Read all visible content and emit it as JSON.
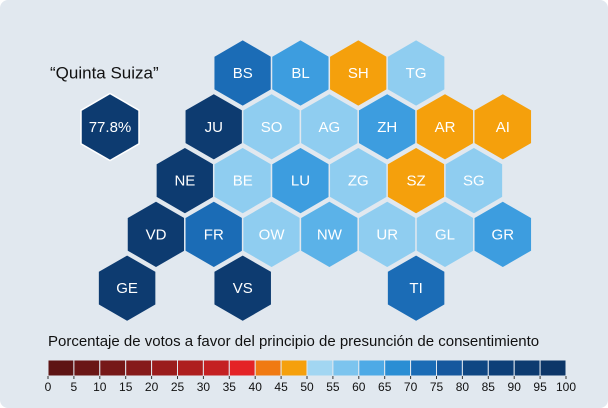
{
  "title": "“Quinta Suiza”",
  "highlight": {
    "label": "77.8%",
    "color": "#0d3b70"
  },
  "cantons": [
    {
      "label": "BS",
      "row": 0,
      "col": 1.5,
      "color": "#1b6cb6"
    },
    {
      "label": "BL",
      "row": 0,
      "col": 2.5,
      "color": "#3d9ddf"
    },
    {
      "label": "SH",
      "row": 0,
      "col": 3.5,
      "color": "#f5a00c"
    },
    {
      "label": "TG",
      "row": 0,
      "col": 4.5,
      "color": "#8fcdf0"
    },
    {
      "label": "JU",
      "row": 1,
      "col": 1,
      "color": "#0d3b70"
    },
    {
      "label": "SO",
      "row": 1,
      "col": 2,
      "color": "#8fcdf0"
    },
    {
      "label": "AG",
      "row": 1,
      "col": 3,
      "color": "#8fcdf0"
    },
    {
      "label": "ZH",
      "row": 1,
      "col": 4,
      "color": "#3d9ddf"
    },
    {
      "label": "AR",
      "row": 1,
      "col": 5,
      "color": "#f5a00c"
    },
    {
      "label": "AI",
      "row": 1,
      "col": 6,
      "color": "#f5a00c"
    },
    {
      "label": "NE",
      "row": 2,
      "col": 0.5,
      "color": "#0d3b70"
    },
    {
      "label": "BE",
      "row": 2,
      "col": 1.5,
      "color": "#8fcdf0"
    },
    {
      "label": "LU",
      "row": 2,
      "col": 2.5,
      "color": "#3d9ddf"
    },
    {
      "label": "ZG",
      "row": 2,
      "col": 3.5,
      "color": "#8fcdf0"
    },
    {
      "label": "SZ",
      "row": 2,
      "col": 4.5,
      "color": "#f5a00c"
    },
    {
      "label": "SG",
      "row": 2,
      "col": 5.5,
      "color": "#8fcdf0"
    },
    {
      "label": "VD",
      "row": 3,
      "col": 0,
      "color": "#0d3b70"
    },
    {
      "label": "FR",
      "row": 3,
      "col": 1,
      "color": "#1b6cb6"
    },
    {
      "label": "OW",
      "row": 3,
      "col": 2,
      "color": "#8fcdf0"
    },
    {
      "label": "NW",
      "row": 3,
      "col": 3,
      "color": "#5bb2e8"
    },
    {
      "label": "UR",
      "row": 3,
      "col": 4,
      "color": "#8fcdf0"
    },
    {
      "label": "GL",
      "row": 3,
      "col": 5,
      "color": "#8fcdf0"
    },
    {
      "label": "GR",
      "row": 3,
      "col": 6,
      "color": "#3d9ddf"
    },
    {
      "label": "GE",
      "row": 4,
      "col": -0.5,
      "color": "#0d3b70"
    },
    {
      "label": "VS",
      "row": 4,
      "col": 1.5,
      "color": "#0d3b70"
    },
    {
      "label": "TI",
      "row": 4,
      "col": 4.5,
      "color": "#1b6cb6"
    }
  ],
  "legend": {
    "title": "Porcentaje de votos a favor del principio de presunción de consentimiento",
    "range": [
      0,
      100
    ],
    "ticks": [
      0,
      5,
      10,
      15,
      20,
      25,
      30,
      35,
      40,
      45,
      50,
      55,
      60,
      65,
      70,
      75,
      80,
      85,
      90,
      95,
      100
    ],
    "colors": [
      "#5e1414",
      "#6a1616",
      "#761818",
      "#861a1a",
      "#9a1c1c",
      "#ae1e1e",
      "#c42022",
      "#e42326",
      "#f07a12",
      "#f5a00c",
      "#a2d6f2",
      "#7cc4ee",
      "#4eaae6",
      "#2a8ed4",
      "#1b6cb6",
      "#16589e",
      "#0f4783",
      "#0d3f78",
      "#0d3b70",
      "#0c3668"
    ]
  }
}
